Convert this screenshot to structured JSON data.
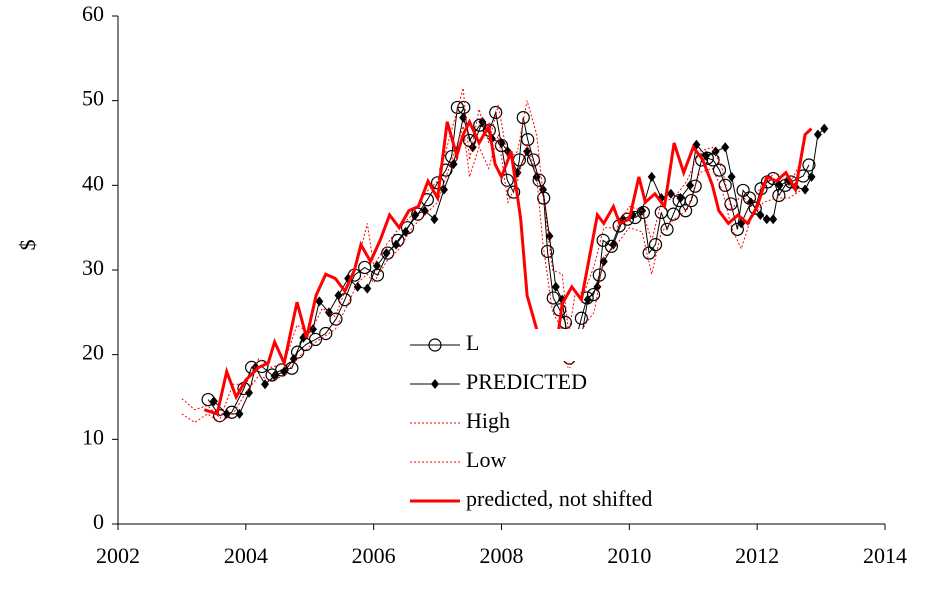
{
  "chart_data": {
    "type": "line",
    "y_label": "$",
    "xlim": [
      2002,
      2014
    ],
    "xticks": [
      2002,
      2004,
      2006,
      2008,
      2010,
      2012,
      2014
    ],
    "ylim": [
      0,
      60
    ],
    "yticks": [
      0,
      10,
      20,
      30,
      40,
      50,
      60
    ],
    "grid": false,
    "legend": "center",
    "series": [
      {
        "name": "L",
        "color": "#000000",
        "marker": "circle",
        "line_style": "solid",
        "line_width": 1,
        "x": [
          2003.41,
          2003.59,
          2003.78,
          2003.97,
          2004.09,
          2004.25,
          2004.41,
          2004.56,
          2004.72,
          2004.81,
          2004.94,
          2005.09,
          2005.25,
          2005.41,
          2005.55,
          2005.7,
          2005.86,
          2006.06,
          2006.22,
          2006.38,
          2006.53,
          2006.69,
          2006.84,
          2007.0,
          2007.13,
          2007.22,
          2007.31,
          2007.41,
          2007.5,
          2007.66,
          2007.81,
          2007.91,
          2008.0,
          2008.09,
          2008.19,
          2008.28,
          2008.34,
          2008.41,
          2008.5,
          2008.59,
          2008.66,
          2008.72,
          2008.81,
          2008.91,
          2009.0,
          2009.06,
          2009.16,
          2009.25,
          2009.34,
          2009.44,
          2009.53,
          2009.59,
          2009.72,
          2009.84,
          2009.97,
          2010.09,
          2010.22,
          2010.31,
          2010.41,
          2010.5,
          2010.59,
          2010.69,
          2010.78,
          2010.88,
          2010.97,
          2011.03,
          2011.13,
          2011.22,
          2011.31,
          2011.41,
          2011.5,
          2011.59,
          2011.69,
          2011.78,
          2011.88,
          2011.97,
          2012.06,
          2012.16,
          2012.25,
          2012.34,
          2012.44,
          2012.53,
          2012.72,
          2012.81
        ],
        "values": [
          14.7,
          12.8,
          13.2,
          16.0,
          18.5,
          18.6,
          17.6,
          18.2,
          18.4,
          20.3,
          21.2,
          21.8,
          22.5,
          24.2,
          26.5,
          29.4,
          30.3,
          29.4,
          32,
          33.5,
          35,
          36.6,
          38.3,
          40.3,
          41.8,
          43.4,
          49.2,
          49.2,
          45.3,
          47.1,
          46.5,
          48.6,
          44.7,
          40.6,
          39.2,
          43,
          48,
          45.4,
          43,
          40.6,
          38.5,
          32.2,
          26.7,
          25.3,
          23.8,
          19.6,
          21.7,
          24.3,
          26.7,
          27.1,
          29.4,
          33.5,
          32.8,
          35.2,
          36,
          36.2,
          36.8,
          32,
          33,
          36.8,
          34.8,
          36.6,
          38.2,
          37,
          38.2,
          39.9,
          43,
          43.2,
          43,
          41.8,
          40,
          37.8,
          34.8,
          39.4,
          38.5,
          37.3,
          39.6,
          40.4,
          40.8,
          38.8,
          40,
          40.4,
          41.1,
          42.4
        ]
      },
      {
        "name": "PREDICTED",
        "color": "#000000",
        "marker": "diamond",
        "line_style": "solid",
        "line_width": 1,
        "x": [
          2003.5,
          2003.7,
          2003.9,
          2004.05,
          2004.15,
          2004.3,
          2004.45,
          2004.6,
          2004.75,
          2004.9,
          2005.05,
          2005.15,
          2005.3,
          2005.45,
          2005.6,
          2005.75,
          2005.9,
          2006.05,
          2006.2,
          2006.35,
          2006.5,
          2006.65,
          2006.8,
          2006.95,
          2007.1,
          2007.25,
          2007.4,
          2007.55,
          2007.7,
          2007.85,
          2008.0,
          2008.1,
          2008.25,
          2008.4,
          2008.55,
          2008.65,
          2008.75,
          2008.85,
          2008.95,
          2009.05,
          2009.15,
          2009.25,
          2009.35,
          2009.5,
          2009.6,
          2009.75,
          2009.9,
          2010.05,
          2010.2,
          2010.35,
          2010.5,
          2010.65,
          2010.8,
          2010.95,
          2011.05,
          2011.2,
          2011.35,
          2011.5,
          2011.6,
          2011.75,
          2011.9,
          2012.05,
          2012.15,
          2012.25,
          2012.35,
          2012.5,
          2012.6,
          2012.75,
          2012.85,
          2012.95,
          2013.05
        ],
        "values": [
          14.5,
          13.0,
          13.0,
          15.5,
          18.5,
          16.5,
          17.5,
          18.0,
          19.5,
          22.0,
          23.0,
          26.3,
          25.0,
          27.0,
          29.0,
          28.0,
          27.8,
          30.5,
          32.0,
          33.0,
          34.5,
          36.5,
          37.0,
          36.0,
          39.5,
          42.5,
          48.0,
          44.5,
          47.5,
          45.5,
          45.0,
          44.0,
          41.5,
          44.0,
          41.0,
          39.5,
          34.0,
          28.0,
          26.5,
          20.5,
          20.0,
          22.0,
          26.5,
          28.0,
          31.0,
          33.0,
          36.0,
          36.5,
          37.0,
          41.0,
          38.5,
          39.0,
          38.5,
          40.0,
          44.8,
          43.5,
          44.0,
          44.5,
          41.0,
          35.5,
          38.0,
          36.5,
          36.0,
          36.0,
          40.0,
          40.5,
          39.8,
          39.5,
          41.0,
          46.0,
          46.7
        ]
      },
      {
        "name": "High",
        "color": "#ff0000",
        "marker": "none",
        "line_style": "dotted",
        "line_width": 1,
        "x": [
          2003.0,
          2003.2,
          2003.4,
          2003.6,
          2003.8,
          2004.0,
          2004.2,
          2004.4,
          2004.6,
          2004.8,
          2005.0,
          2005.2,
          2005.4,
          2005.6,
          2005.75,
          2005.9,
          2006.0,
          2006.2,
          2006.4,
          2006.6,
          2006.8,
          2007.0,
          2007.2,
          2007.4,
          2007.5,
          2007.65,
          2007.8,
          2007.95,
          2008.1,
          2008.25,
          2008.4,
          2008.55,
          2008.65,
          2008.8,
          2008.95,
          2009.05,
          2009.15,
          2009.3,
          2009.45,
          2009.6,
          2009.8,
          2010.0,
          2010.2,
          2010.35,
          2010.5,
          2010.7,
          2010.9,
          2011.1,
          2011.3,
          2011.45,
          2011.6,
          2011.75,
          2011.9,
          2012.1,
          2012.3,
          2012.5,
          2012.7
        ],
        "values": [
          14.8,
          13.5,
          14.0,
          12.5,
          16.5,
          16.5,
          19.5,
          18.5,
          19.0,
          23.5,
          22.5,
          25.5,
          24.5,
          28.5,
          31.0,
          35.5,
          30.5,
          33.0,
          35.0,
          36.5,
          39.0,
          40.5,
          46.0,
          51.5,
          43.0,
          49.0,
          45.0,
          49.5,
          43.0,
          44.0,
          50.0,
          46.0,
          39.0,
          30.0,
          29.5,
          22.5,
          27.0,
          27.5,
          30.5,
          35.0,
          35.0,
          37.5,
          37.0,
          33.5,
          38.0,
          38.5,
          40.5,
          44.0,
          44.5,
          42.0,
          37.0,
          39.0,
          37.5,
          40.5,
          41.5,
          40.0,
          43.0
        ]
      },
      {
        "name": "Low",
        "color": "#ff0000",
        "marker": "none",
        "line_style": "dotted",
        "line_width": 1,
        "x": [
          2003.0,
          2003.2,
          2003.4,
          2003.6,
          2003.8,
          2004.0,
          2004.2,
          2004.4,
          2004.6,
          2004.8,
          2005.0,
          2005.2,
          2005.4,
          2005.6,
          2005.75,
          2005.9,
          2006.0,
          2006.2,
          2006.4,
          2006.6,
          2006.8,
          2007.0,
          2007.2,
          2007.4,
          2007.5,
          2007.65,
          2007.8,
          2007.95,
          2008.1,
          2008.25,
          2008.4,
          2008.55,
          2008.65,
          2008.8,
          2008.95,
          2009.05,
          2009.15,
          2009.3,
          2009.45,
          2009.6,
          2009.8,
          2010.0,
          2010.2,
          2010.35,
          2010.5,
          2010.7,
          2010.9,
          2011.1,
          2011.3,
          2011.45,
          2011.6,
          2011.75,
          2011.9,
          2012.1,
          2012.3,
          2012.5,
          2012.7
        ],
        "values": [
          13.0,
          12.0,
          13.0,
          12.0,
          13.0,
          15.5,
          17.5,
          17.0,
          17.5,
          19.5,
          21.0,
          22.0,
          23.0,
          26.0,
          28.5,
          29.5,
          28.5,
          31.0,
          32.5,
          35.0,
          36.5,
          38.0,
          42.5,
          47.0,
          41.0,
          44.5,
          42.0,
          46.0,
          38.0,
          40.5,
          45.0,
          41.0,
          33.0,
          25.0,
          23.0,
          18.0,
          20.0,
          23.5,
          25.0,
          31.5,
          33.0,
          35.0,
          34.5,
          29.5,
          34.5,
          36.0,
          37.0,
          41.5,
          42.0,
          39.5,
          35.0,
          32.5,
          36.0,
          38.0,
          38.5,
          38.5,
          39.5
        ]
      },
      {
        "name": "predicted, not shifted",
        "color": "#ff0000",
        "marker": "none",
        "line_style": "solid",
        "line_width": 3,
        "x": [
          2003.35,
          2003.55,
          2003.7,
          2003.85,
          2004.0,
          2004.2,
          2004.35,
          2004.45,
          2004.6,
          2004.8,
          2004.95,
          2005.1,
          2005.25,
          2005.4,
          2005.55,
          2005.7,
          2005.8,
          2005.95,
          2006.1,
          2006.25,
          2006.4,
          2006.55,
          2006.7,
          2006.85,
          2007.0,
          2007.15,
          2007.3,
          2007.4,
          2007.5,
          2007.65,
          2007.8,
          2007.9,
          2008.0,
          2008.15,
          2008.3,
          2008.4,
          2008.55,
          2008.62,
          2008.75,
          2008.85,
          2008.95,
          2009.1,
          2009.25,
          2009.35,
          2009.5,
          2009.6,
          2009.75,
          2009.85,
          2010.0,
          2010.15,
          2010.25,
          2010.4,
          2010.55,
          2010.7,
          2010.85,
          2011.0,
          2011.15,
          2011.3,
          2011.4,
          2011.55,
          2011.7,
          2011.85,
          2012.0,
          2012.15,
          2012.3,
          2012.45,
          2012.6,
          2012.75,
          2012.85
        ],
        "values": [
          13.5,
          13.0,
          18.0,
          15.0,
          17.0,
          18.5,
          19.0,
          21.5,
          19.0,
          26.2,
          22.0,
          27.0,
          29.5,
          29.0,
          27.5,
          30.0,
          33.0,
          31.0,
          33.5,
          36.5,
          35.0,
          37.0,
          37.5,
          40.5,
          38.5,
          47.5,
          43.5,
          46.0,
          47.5,
          45.0,
          47.0,
          42.5,
          41.0,
          44.0,
          36.0,
          27.0,
          23.0,
          20.5,
          22.0,
          20.5,
          26.0,
          28.0,
          26.5,
          30.5,
          36.5,
          35.5,
          37.5,
          35.5,
          36.0,
          41.0,
          38.0,
          39.0,
          37.5,
          45.0,
          41.5,
          44.5,
          43.0,
          40.0,
          37.0,
          35.5,
          36.5,
          35.5,
          37.5,
          41.0,
          40.5,
          41.5,
          39.5,
          46.0,
          46.7
        ]
      }
    ]
  }
}
